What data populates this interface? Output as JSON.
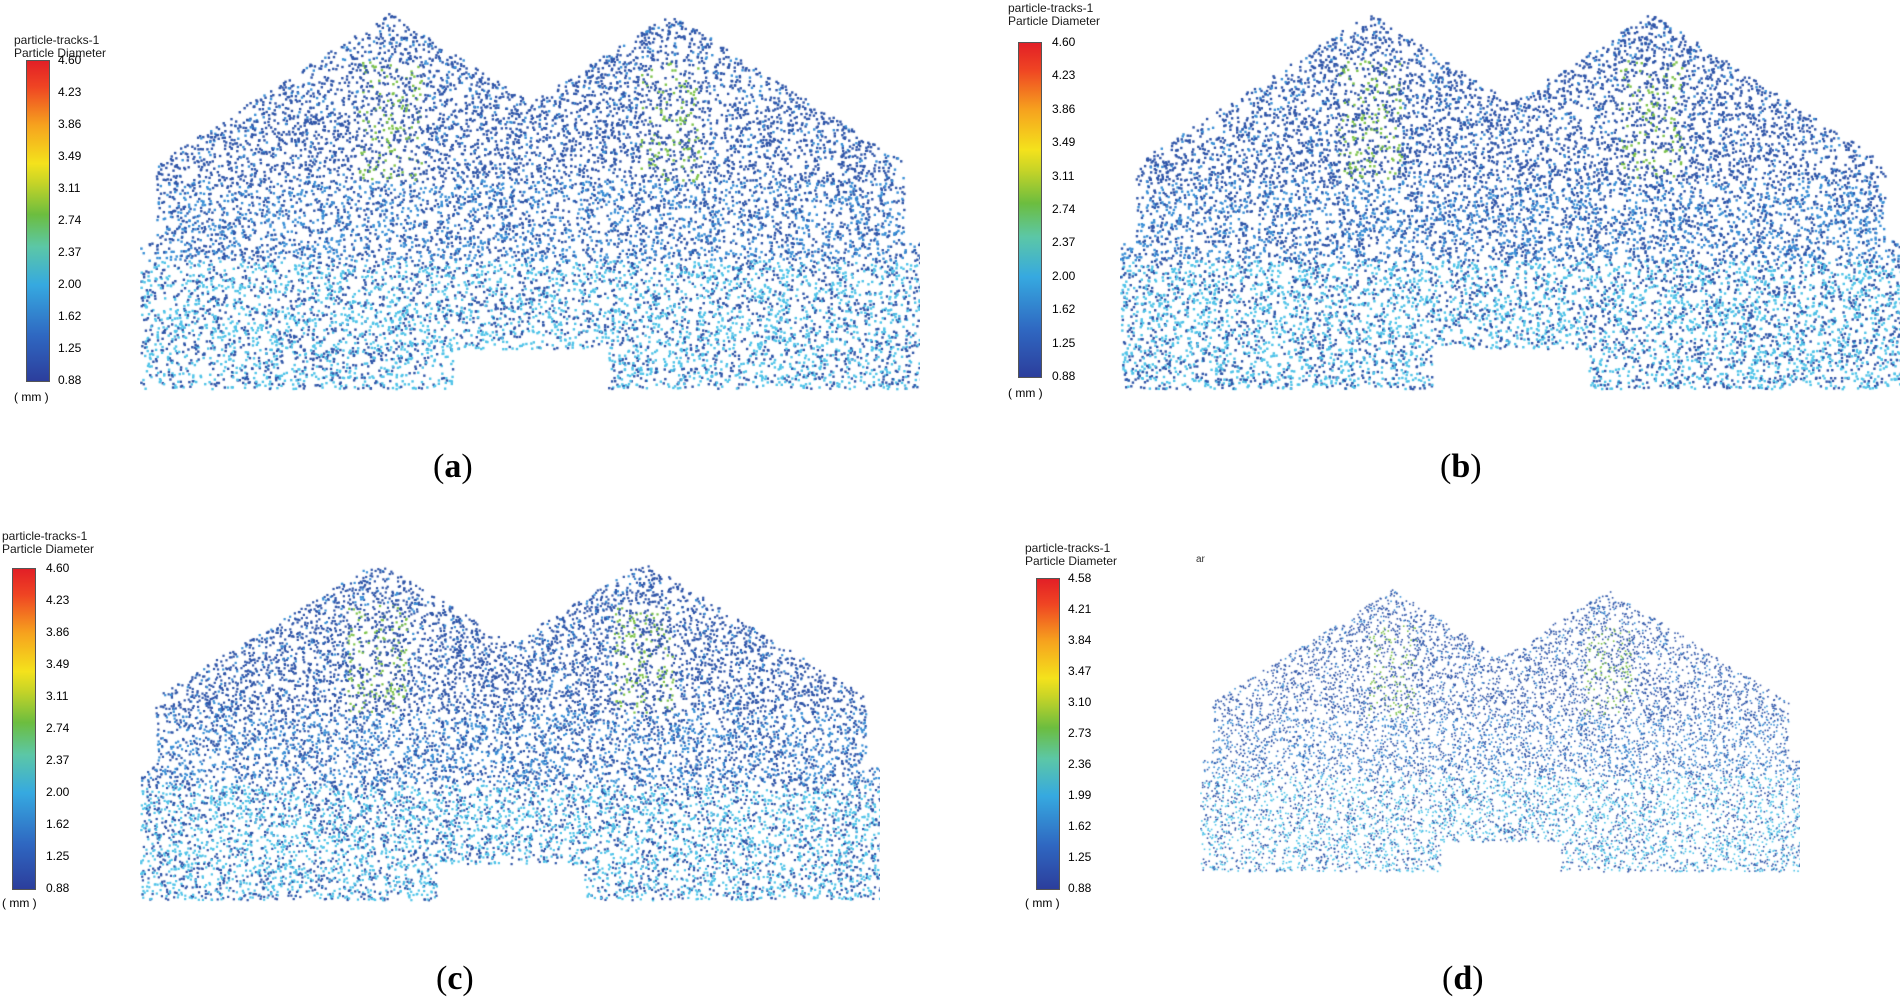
{
  "panels": [
    {
      "id": "a",
      "caption_open": "(",
      "caption_letter": "a",
      "caption_close": ")",
      "legend_title_1": "particle-tracks-1",
      "legend_title_2": "Particle Diameter",
      "ticks": [
        "4.60",
        "4.23",
        "3.86",
        "3.49",
        "3.11",
        "2.74",
        "2.37",
        "2.00",
        "1.62",
        "1.25",
        "0.88"
      ],
      "unit": "( mm )"
    },
    {
      "id": "b",
      "caption_open": "(",
      "caption_letter": "b",
      "caption_close": ")",
      "legend_title_1": "particle-tracks-1",
      "legend_title_2": "Particle Diameter",
      "ticks": [
        "4.60",
        "4.23",
        "3.86",
        "3.49",
        "3.11",
        "2.74",
        "2.37",
        "2.00",
        "1.62",
        "1.25",
        "0.88"
      ],
      "unit": "( mm )"
    },
    {
      "id": "c",
      "caption_open": "(",
      "caption_letter": "c",
      "caption_close": ")",
      "legend_title_1": "particle-tracks-1",
      "legend_title_2": "Particle Diameter",
      "ticks": [
        "4.60",
        "4.23",
        "3.86",
        "3.49",
        "3.11",
        "2.74",
        "2.37",
        "2.00",
        "1.62",
        "1.25",
        "0.88"
      ],
      "unit": "( mm )"
    },
    {
      "id": "d",
      "caption_open": "(",
      "caption_letter": "d",
      "caption_close": ")",
      "legend_title_1": "particle-tracks-1",
      "legend_title_2": "Particle Diameter",
      "ticks": [
        "4.58",
        "4.21",
        "3.84",
        "3.47",
        "3.10",
        "2.73",
        "2.36",
        "1.99",
        "1.62",
        "1.25",
        "0.88"
      ],
      "unit": "( mm )",
      "stray_text": "ar"
    }
  ],
  "colors": {
    "particle_dark": "#2f55a8",
    "particle_mid": "#3a8fd6",
    "particle_light": "#4fc3e8",
    "particle_green": "#7cc34a"
  }
}
